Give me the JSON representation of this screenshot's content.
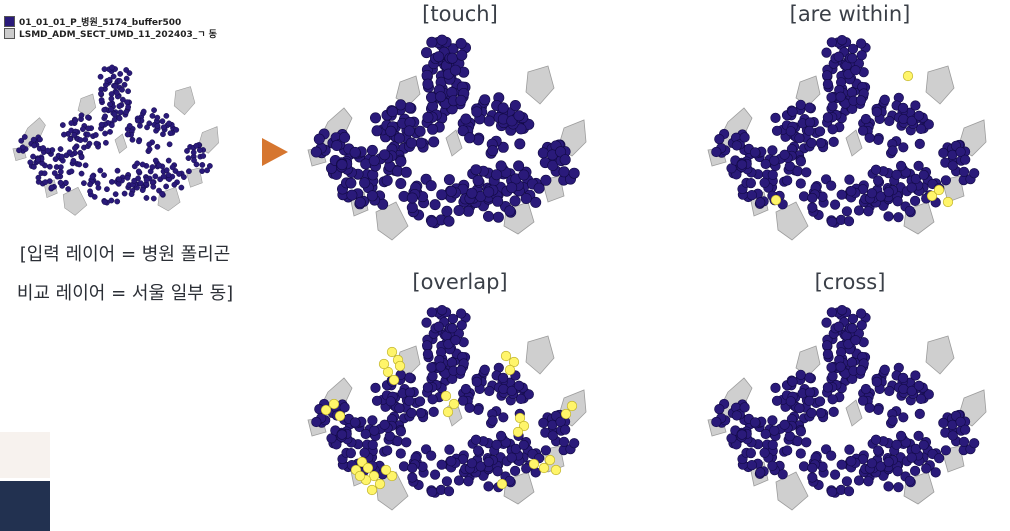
{
  "legend": {
    "items": [
      {
        "label": "01_01_01_P_병원_5174_buffer500",
        "color": "#2a1a7a"
      },
      {
        "label": "LSMD_ADM_SECT_UMD_11_202403_ㄱ 동",
        "color": "#cccccc"
      }
    ]
  },
  "colors": {
    "point": "#2a1a7a",
    "point_stroke": "#120a45",
    "highlight": "#fff56a",
    "highlight_stroke": "#b8aa20",
    "district": "#cfcfcf",
    "district_stroke": "#9c9c9c",
    "arrow": "#d6762f"
  },
  "panels": {
    "input": {
      "title": ""
    },
    "touch": {
      "title": "[touch]"
    },
    "within": {
      "title": "[are within]"
    },
    "overlap": {
      "title": "[overlap]"
    },
    "cross": {
      "title": "[cross]"
    }
  },
  "caption": {
    "line1": "[입력 레이어 = 병원 폴리곤",
    "line2": "비교 레이어 = 서울 일부 동]"
  },
  "icons": {
    "arrow": "play-arrow-icon"
  }
}
